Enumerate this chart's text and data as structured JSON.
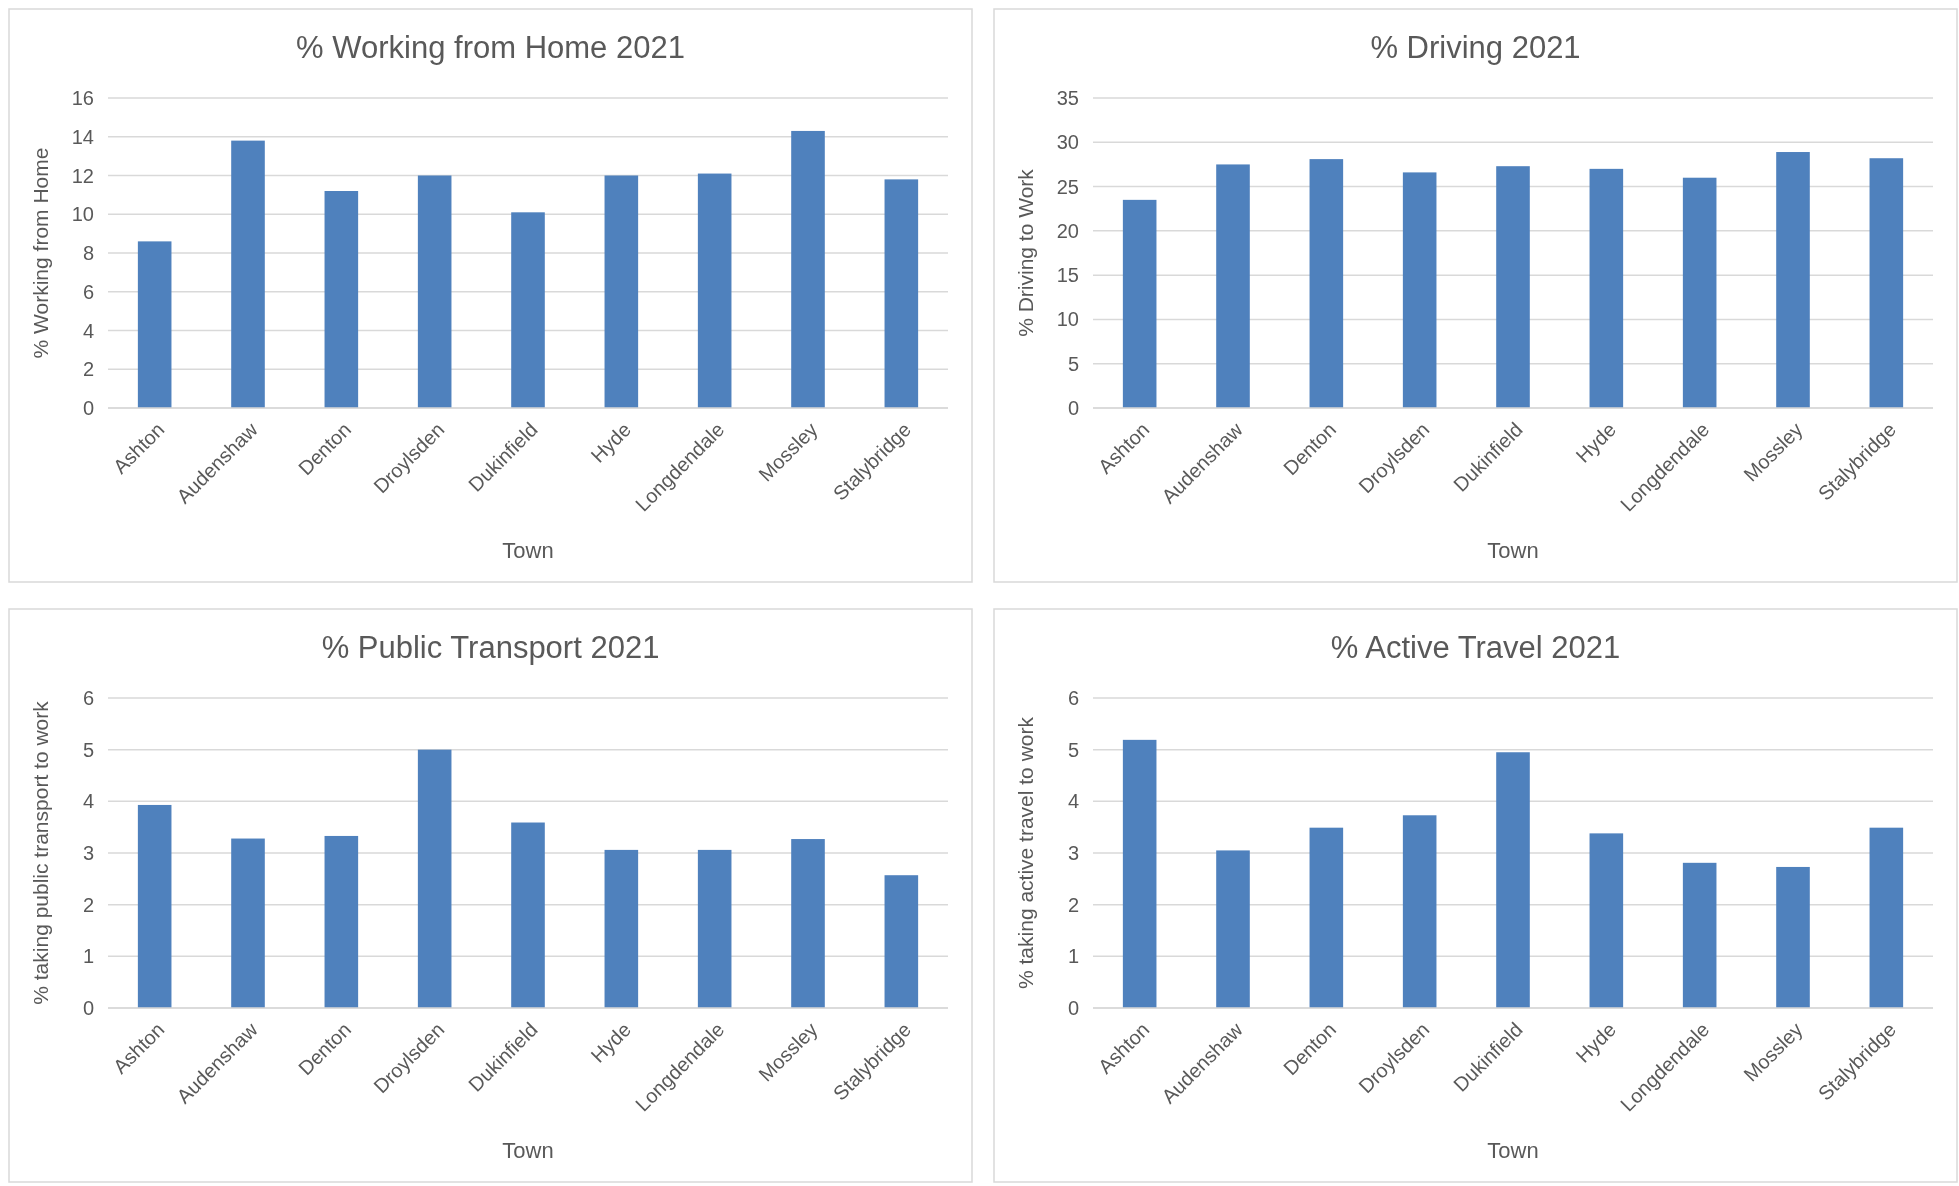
{
  "chart_data": [
    {
      "type": "bar",
      "title": "% Working from Home 2021",
      "xlabel": "Town",
      "ylabel": "% Working from Home",
      "categories": [
        "Ashton",
        "Audenshaw",
        "Denton",
        "Droylsden",
        "Dukinfield",
        "Hyde",
        "Longdendale",
        "Mossley",
        "Stalybridge"
      ],
      "values": [
        8.6,
        13.8,
        11.2,
        12.0,
        10.1,
        12.0,
        12.1,
        14.3,
        11.8
      ],
      "color": "#4f81bd",
      "ylim": [
        0,
        16
      ],
      "yticks": [
        0,
        2,
        4,
        6,
        8,
        10,
        12,
        14,
        16
      ],
      "grid": "y"
    },
    {
      "type": "bar",
      "title": "% Driving 2021",
      "xlabel": "Town",
      "ylabel": "% Driving to Work",
      "categories": [
        "Ashton",
        "Audenshaw",
        "Denton",
        "Droylsden",
        "Dukinfield",
        "Hyde",
        "Longdendale",
        "Mossley",
        "Stalybridge"
      ],
      "values": [
        23.5,
        27.5,
        28.1,
        26.6,
        27.3,
        27.0,
        26.0,
        28.9,
        28.2
      ],
      "color": "#4f81bd",
      "ylim": [
        0,
        35
      ],
      "yticks": [
        0,
        5,
        10,
        15,
        20,
        25,
        30,
        35
      ],
      "grid": "y"
    },
    {
      "type": "bar",
      "title": "% Public Transport 2021",
      "xlabel": "Town",
      "ylabel": "% taking public transport to work",
      "categories": [
        "Ashton",
        "Audenshaw",
        "Denton",
        "Droylsden",
        "Dukinfield",
        "Hyde",
        "Longdendale",
        "Mossley",
        "Stalybridge"
      ],
      "values": [
        3.93,
        3.28,
        3.33,
        5.0,
        3.59,
        3.06,
        3.06,
        3.27,
        2.57
      ],
      "color": "#4f81bd",
      "ylim": [
        0,
        6
      ],
      "yticks": [
        0,
        1,
        2,
        3,
        4,
        5,
        6
      ],
      "grid": "y"
    },
    {
      "type": "bar",
      "title": "% Active Travel 2021",
      "xlabel": "Town",
      "ylabel": "% taking active travel to work",
      "categories": [
        "Ashton",
        "Audenshaw",
        "Denton",
        "Droylsden",
        "Dukinfield",
        "Hyde",
        "Longdendale",
        "Mossley",
        "Stalybridge"
      ],
      "values": [
        5.19,
        3.05,
        3.49,
        3.73,
        4.95,
        3.38,
        2.81,
        2.73,
        3.49
      ],
      "color": "#4f81bd",
      "ylim": [
        0,
        6
      ],
      "yticks": [
        0,
        1,
        2,
        3,
        4,
        5,
        6
      ],
      "grid": "y"
    }
  ]
}
